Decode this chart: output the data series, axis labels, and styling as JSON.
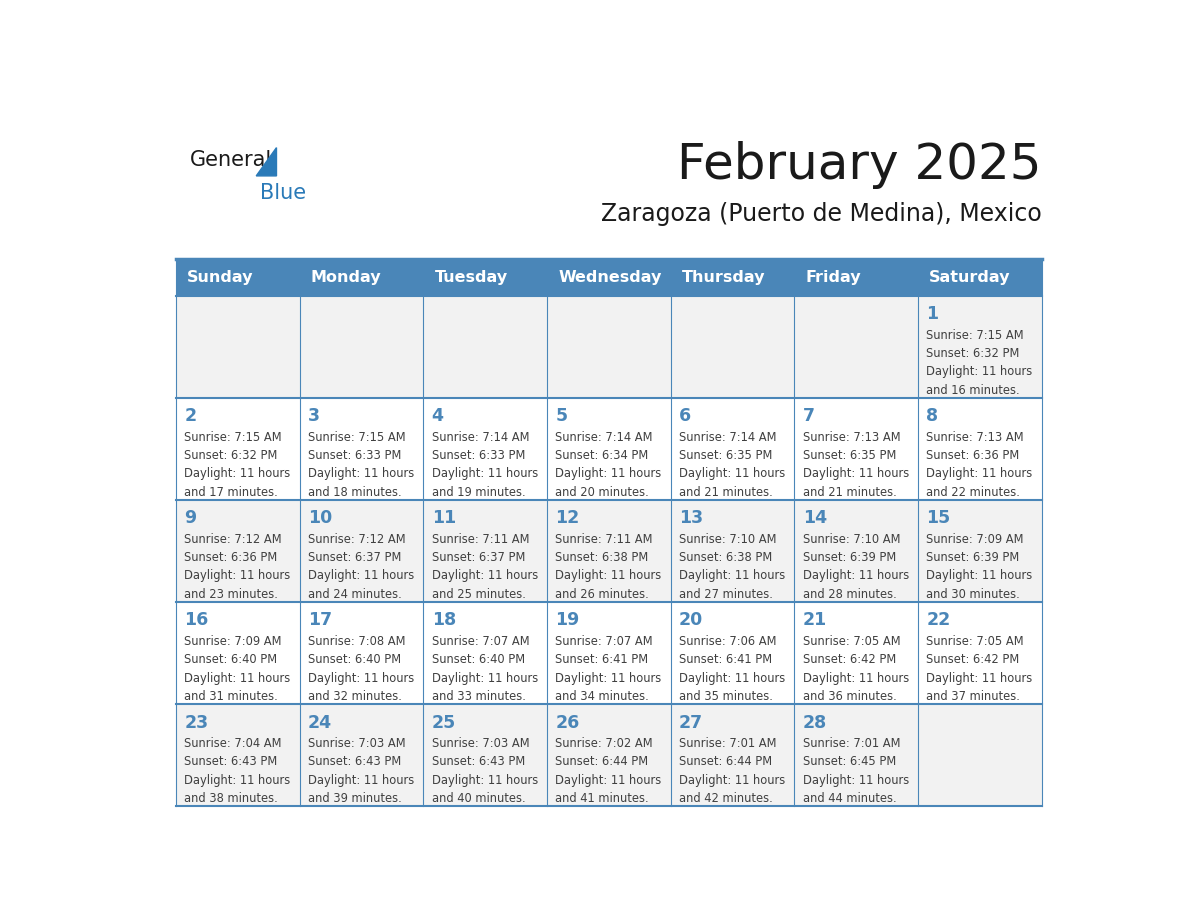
{
  "title": "February 2025",
  "subtitle": "Zaragoza (Puerto de Medina), Mexico",
  "days_of_week": [
    "Sunday",
    "Monday",
    "Tuesday",
    "Wednesday",
    "Thursday",
    "Friday",
    "Saturday"
  ],
  "header_bg": "#4a86b8",
  "header_text": "#ffffff",
  "row_bg_odd": "#f2f2f2",
  "row_bg_even": "#ffffff",
  "border_color": "#4a86b8",
  "day_number_color": "#4a86b8",
  "info_text_color": "#404040",
  "title_color": "#1a1a1a",
  "subtitle_color": "#1a1a1a",
  "logo_general_color": "#1a1a1a",
  "logo_blue_color": "#2a7ab8",
  "calendar_data": [
    {
      "day": 1,
      "col": 6,
      "row": 0,
      "sunrise": "7:15 AM",
      "sunset": "6:32 PM",
      "daylight_hours": 11,
      "daylight_minutes": 16
    },
    {
      "day": 2,
      "col": 0,
      "row": 1,
      "sunrise": "7:15 AM",
      "sunset": "6:32 PM",
      "daylight_hours": 11,
      "daylight_minutes": 17
    },
    {
      "day": 3,
      "col": 1,
      "row": 1,
      "sunrise": "7:15 AM",
      "sunset": "6:33 PM",
      "daylight_hours": 11,
      "daylight_minutes": 18
    },
    {
      "day": 4,
      "col": 2,
      "row": 1,
      "sunrise": "7:14 AM",
      "sunset": "6:33 PM",
      "daylight_hours": 11,
      "daylight_minutes": 19
    },
    {
      "day": 5,
      "col": 3,
      "row": 1,
      "sunrise": "7:14 AM",
      "sunset": "6:34 PM",
      "daylight_hours": 11,
      "daylight_minutes": 20
    },
    {
      "day": 6,
      "col": 4,
      "row": 1,
      "sunrise": "7:14 AM",
      "sunset": "6:35 PM",
      "daylight_hours": 11,
      "daylight_minutes": 21
    },
    {
      "day": 7,
      "col": 5,
      "row": 1,
      "sunrise": "7:13 AM",
      "sunset": "6:35 PM",
      "daylight_hours": 11,
      "daylight_minutes": 21
    },
    {
      "day": 8,
      "col": 6,
      "row": 1,
      "sunrise": "7:13 AM",
      "sunset": "6:36 PM",
      "daylight_hours": 11,
      "daylight_minutes": 22
    },
    {
      "day": 9,
      "col": 0,
      "row": 2,
      "sunrise": "7:12 AM",
      "sunset": "6:36 PM",
      "daylight_hours": 11,
      "daylight_minutes": 23
    },
    {
      "day": 10,
      "col": 1,
      "row": 2,
      "sunrise": "7:12 AM",
      "sunset": "6:37 PM",
      "daylight_hours": 11,
      "daylight_minutes": 24
    },
    {
      "day": 11,
      "col": 2,
      "row": 2,
      "sunrise": "7:11 AM",
      "sunset": "6:37 PM",
      "daylight_hours": 11,
      "daylight_minutes": 25
    },
    {
      "day": 12,
      "col": 3,
      "row": 2,
      "sunrise": "7:11 AM",
      "sunset": "6:38 PM",
      "daylight_hours": 11,
      "daylight_minutes": 26
    },
    {
      "day": 13,
      "col": 4,
      "row": 2,
      "sunrise": "7:10 AM",
      "sunset": "6:38 PM",
      "daylight_hours": 11,
      "daylight_minutes": 27
    },
    {
      "day": 14,
      "col": 5,
      "row": 2,
      "sunrise": "7:10 AM",
      "sunset": "6:39 PM",
      "daylight_hours": 11,
      "daylight_minutes": 28
    },
    {
      "day": 15,
      "col": 6,
      "row": 2,
      "sunrise": "7:09 AM",
      "sunset": "6:39 PM",
      "daylight_hours": 11,
      "daylight_minutes": 30
    },
    {
      "day": 16,
      "col": 0,
      "row": 3,
      "sunrise": "7:09 AM",
      "sunset": "6:40 PM",
      "daylight_hours": 11,
      "daylight_minutes": 31
    },
    {
      "day": 17,
      "col": 1,
      "row": 3,
      "sunrise": "7:08 AM",
      "sunset": "6:40 PM",
      "daylight_hours": 11,
      "daylight_minutes": 32
    },
    {
      "day": 18,
      "col": 2,
      "row": 3,
      "sunrise": "7:07 AM",
      "sunset": "6:40 PM",
      "daylight_hours": 11,
      "daylight_minutes": 33
    },
    {
      "day": 19,
      "col": 3,
      "row": 3,
      "sunrise": "7:07 AM",
      "sunset": "6:41 PM",
      "daylight_hours": 11,
      "daylight_minutes": 34
    },
    {
      "day": 20,
      "col": 4,
      "row": 3,
      "sunrise": "7:06 AM",
      "sunset": "6:41 PM",
      "daylight_hours": 11,
      "daylight_minutes": 35
    },
    {
      "day": 21,
      "col": 5,
      "row": 3,
      "sunrise": "7:05 AM",
      "sunset": "6:42 PM",
      "daylight_hours": 11,
      "daylight_minutes": 36
    },
    {
      "day": 22,
      "col": 6,
      "row": 3,
      "sunrise": "7:05 AM",
      "sunset": "6:42 PM",
      "daylight_hours": 11,
      "daylight_minutes": 37
    },
    {
      "day": 23,
      "col": 0,
      "row": 4,
      "sunrise": "7:04 AM",
      "sunset": "6:43 PM",
      "daylight_hours": 11,
      "daylight_minutes": 38
    },
    {
      "day": 24,
      "col": 1,
      "row": 4,
      "sunrise": "7:03 AM",
      "sunset": "6:43 PM",
      "daylight_hours": 11,
      "daylight_minutes": 39
    },
    {
      "day": 25,
      "col": 2,
      "row": 4,
      "sunrise": "7:03 AM",
      "sunset": "6:43 PM",
      "daylight_hours": 11,
      "daylight_minutes": 40
    },
    {
      "day": 26,
      "col": 3,
      "row": 4,
      "sunrise": "7:02 AM",
      "sunset": "6:44 PM",
      "daylight_hours": 11,
      "daylight_minutes": 41
    },
    {
      "day": 27,
      "col": 4,
      "row": 4,
      "sunrise": "7:01 AM",
      "sunset": "6:44 PM",
      "daylight_hours": 11,
      "daylight_minutes": 42
    },
    {
      "day": 28,
      "col": 5,
      "row": 4,
      "sunrise": "7:01 AM",
      "sunset": "6:45 PM",
      "daylight_hours": 11,
      "daylight_minutes": 44
    }
  ],
  "num_rows": 5,
  "num_cols": 7
}
